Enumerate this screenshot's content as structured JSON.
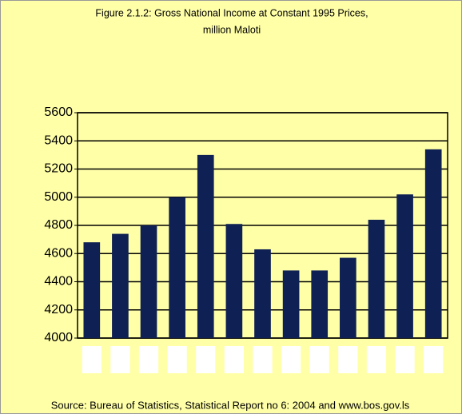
{
  "chart_data": {
    "type": "bar",
    "title": "Figure 2.1.2: Gross National Income at Constant 1995 Prices,",
    "subtitle": "million Maloti",
    "source": "Source: Bureau of Statistics, Statistical Report no 6: 2004 and www.bos.gov.ls",
    "categories": [
      null,
      null,
      null,
      null,
      null,
      null,
      null,
      null,
      null,
      null,
      null,
      null,
      null
    ],
    "values": [
      4680,
      4740,
      4800,
      5000,
      5300,
      4810,
      4630,
      4480,
      4480,
      4570,
      4840,
      5020,
      5340
    ],
    "color": "#0f2154",
    "ylim": [
      4000,
      5600
    ],
    "yticks": [
      4000,
      4200,
      4400,
      4600,
      4800,
      5000,
      5200,
      5400,
      5600
    ],
    "grid": true
  }
}
